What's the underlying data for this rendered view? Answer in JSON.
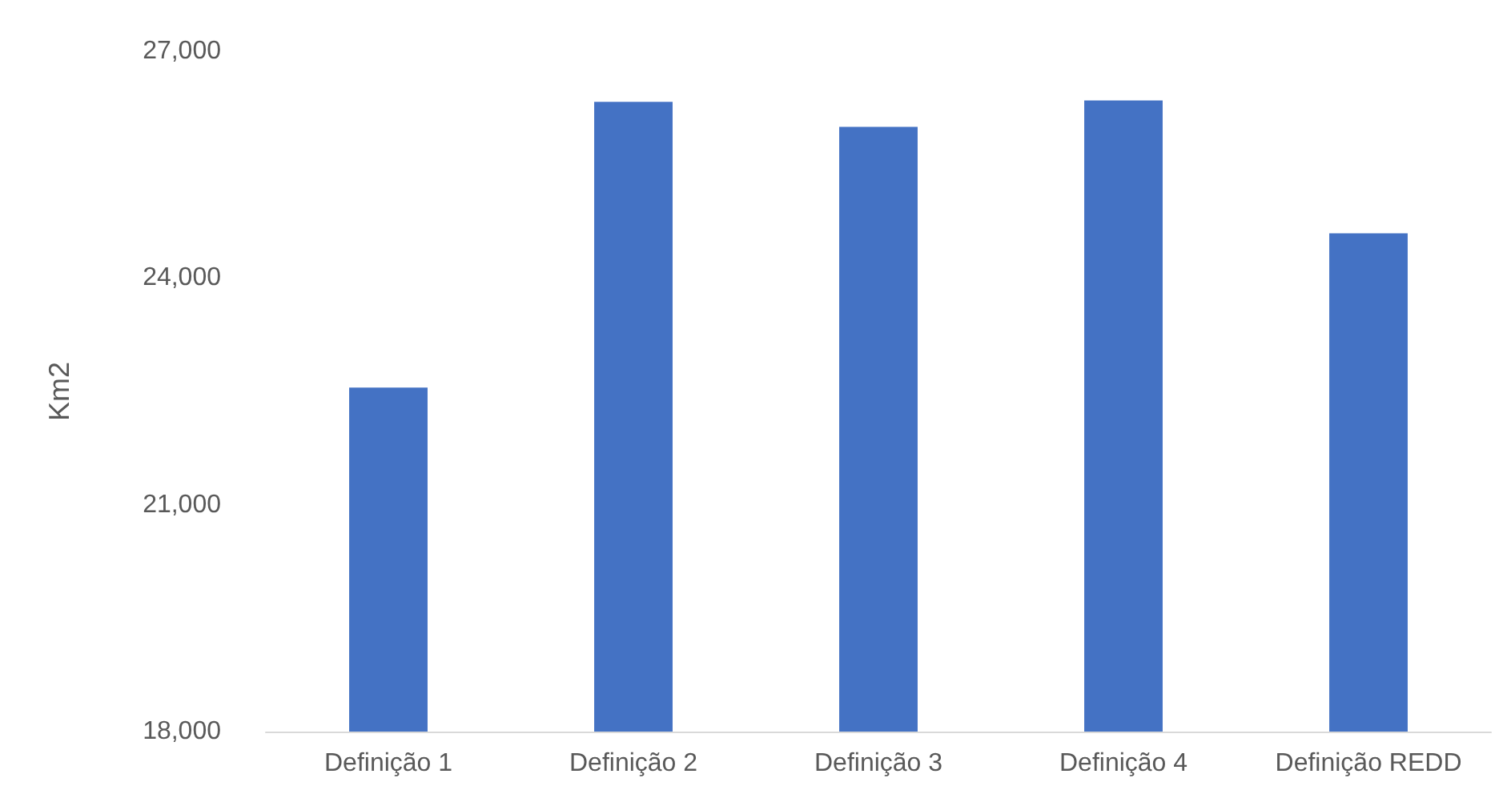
{
  "chart_data": {
    "type": "bar",
    "ylabel": "Km2",
    "categories": [
      "Definição 1",
      "Definição 2",
      "Definição 3",
      "Definição 4",
      "Definição REDD"
    ],
    "values": [
      22550,
      26330,
      26000,
      26350,
      24590
    ],
    "color": "#4472c4",
    "ylim": [
      18000,
      27000
    ],
    "yticks": [
      {
        "value": 18000,
        "label": "18,000"
      },
      {
        "value": 21000,
        "label": "21,000"
      },
      {
        "value": 24000,
        "label": "24,000"
      },
      {
        "value": 27000,
        "label": "27,000"
      }
    ],
    "grid": false
  }
}
